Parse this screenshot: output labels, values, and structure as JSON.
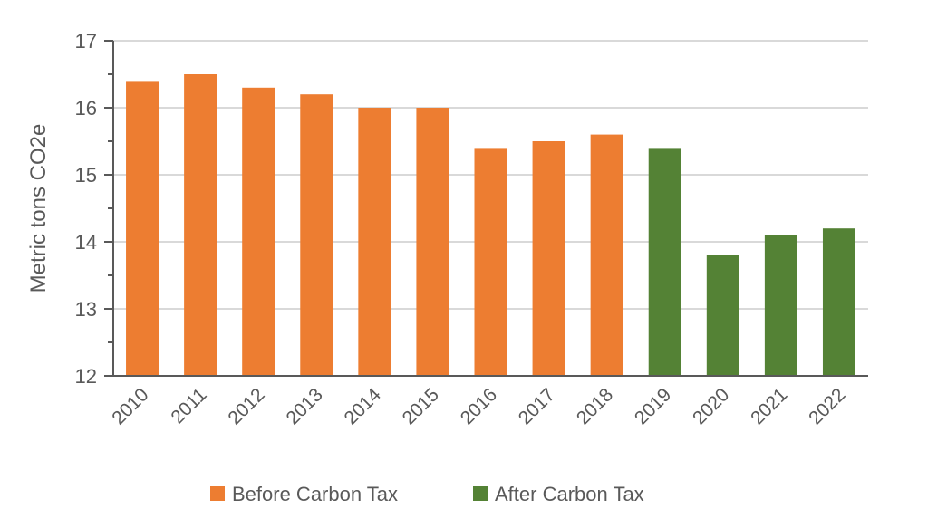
{
  "chart_data": {
    "type": "bar",
    "title": "",
    "xlabel": "",
    "ylabel": "Metric tons CO2e",
    "ylim": [
      12,
      17
    ],
    "yticks": [
      "12",
      "13",
      "14",
      "15",
      "16",
      "17"
    ],
    "grid": true,
    "categories": [
      "2010",
      "2011",
      "2012",
      "2013",
      "2014",
      "2015",
      "2016",
      "2017",
      "2018",
      "2019",
      "2020",
      "2021",
      "2022"
    ],
    "values": [
      16.4,
      16.5,
      16.3,
      16.2,
      16.0,
      16.0,
      15.4,
      15.5,
      15.6,
      15.4,
      13.8,
      14.1,
      14.2
    ],
    "groups": [
      "before",
      "before",
      "before",
      "before",
      "before",
      "before",
      "before",
      "before",
      "before",
      "after",
      "after",
      "after",
      "after"
    ],
    "legend_position": "bottom",
    "legend": [
      {
        "key": "before",
        "label": "Before Carbon Tax",
        "color": "#ED7D31"
      },
      {
        "key": "after",
        "label": "After Carbon Tax",
        "color": "#548235"
      }
    ]
  }
}
